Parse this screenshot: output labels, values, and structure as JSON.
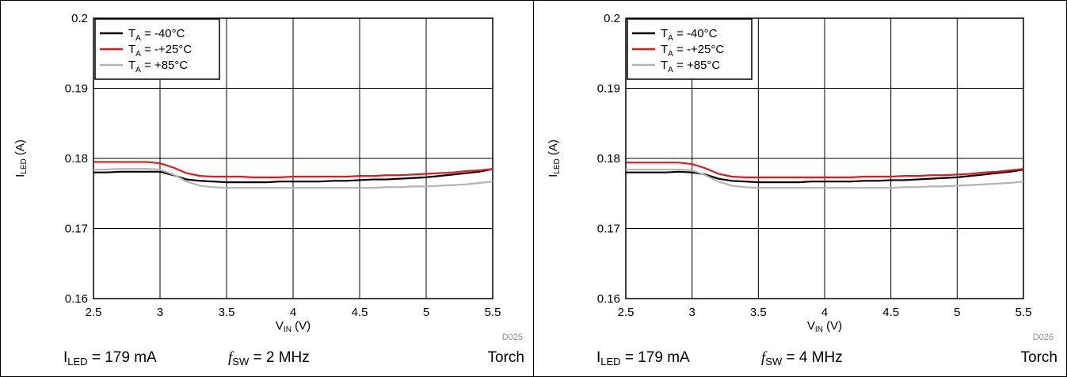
{
  "chart_data": [
    {
      "type": "line",
      "xlabel": {
        "main": "V",
        "sub": "IN",
        "unit": " (V)"
      },
      "ylabel": {
        "main": "I",
        "sub": "LED",
        "unit": " (A)"
      },
      "xlim": [
        2.5,
        5.5
      ],
      "ylim": [
        0.16,
        0.2
      ],
      "xticks": [
        "2.5",
        "3",
        "3.5",
        "4",
        "4.5",
        "5",
        "5.5"
      ],
      "yticks": [
        "0.16",
        "0.17",
        "0.18",
        "0.19",
        "0.2"
      ],
      "grid": true,
      "legend_position": "top-left",
      "code": "D025",
      "x": [
        2.5,
        2.6,
        2.7,
        2.8,
        2.9,
        3.0,
        3.1,
        3.2,
        3.3,
        3.4,
        3.5,
        3.6,
        3.7,
        3.8,
        3.9,
        4.0,
        4.1,
        4.2,
        4.3,
        4.4,
        4.5,
        4.6,
        4.7,
        4.8,
        4.9,
        5.0,
        5.1,
        5.2,
        5.3,
        5.4,
        5.5
      ],
      "series": [
        {
          "name": {
            "main": "T",
            "sub": "A",
            "rest": " = -40°C"
          },
          "color": "#000000",
          "values": [
            0.178,
            0.178,
            0.1781,
            0.1781,
            0.1781,
            0.1781,
            0.1776,
            0.177,
            0.1768,
            0.1767,
            0.1766,
            0.1766,
            0.1766,
            0.1766,
            0.1767,
            0.1767,
            0.1767,
            0.1767,
            0.1768,
            0.1768,
            0.1769,
            0.177,
            0.177,
            0.1771,
            0.1772,
            0.1773,
            0.1775,
            0.1777,
            0.1779,
            0.1781,
            0.1785
          ]
        },
        {
          "name": {
            "main": "T",
            "sub": "A",
            "rest": " = -+25°C"
          },
          "color": "#e31a1c",
          "values": [
            0.1795,
            0.1795,
            0.1795,
            0.1795,
            0.1795,
            0.1793,
            0.1787,
            0.1779,
            0.1775,
            0.1774,
            0.1774,
            0.1774,
            0.1773,
            0.1773,
            0.1773,
            0.1774,
            0.1774,
            0.1774,
            0.1774,
            0.1774,
            0.1775,
            0.1775,
            0.1776,
            0.1776,
            0.1777,
            0.1778,
            0.1779,
            0.178,
            0.1782,
            0.1783,
            0.1785
          ]
        },
        {
          "name": {
            "main": "T",
            "sub": "A",
            "rest": " = +85°C"
          },
          "color": "#b3b3b3",
          "values": [
            0.1784,
            0.1784,
            0.1785,
            0.1785,
            0.1785,
            0.1784,
            0.1777,
            0.1767,
            0.1761,
            0.1759,
            0.1758,
            0.1758,
            0.1758,
            0.1758,
            0.1758,
            0.1758,
            0.1758,
            0.1758,
            0.1758,
            0.1758,
            0.1758,
            0.1758,
            0.1759,
            0.1759,
            0.176,
            0.176,
            0.1761,
            0.1762,
            0.1763,
            0.1765,
            0.1767
          ]
        }
      ],
      "footer": {
        "left": {
          "main": "I",
          "sub": "LED",
          "rest": " = 179 mA"
        },
        "mid": {
          "main": "f",
          "sub": "SW",
          "rest": " = 2 MHz"
        },
        "right": "Torch"
      }
    },
    {
      "type": "line",
      "xlabel": {
        "main": "V",
        "sub": "IN",
        "unit": " (V)"
      },
      "ylabel": {
        "main": "I",
        "sub": "LED",
        "unit": " (A)"
      },
      "xlim": [
        2.5,
        5.5
      ],
      "ylim": [
        0.16,
        0.2
      ],
      "xticks": [
        "2.5",
        "3",
        "3.5",
        "4",
        "4.5",
        "5",
        "5.5"
      ],
      "yticks": [
        "0.16",
        "0.17",
        "0.18",
        "0.19",
        "0.2"
      ],
      "grid": true,
      "legend_position": "top-left",
      "code": "D026",
      "x": [
        2.5,
        2.6,
        2.7,
        2.8,
        2.9,
        3.0,
        3.1,
        3.2,
        3.3,
        3.4,
        3.5,
        3.6,
        3.7,
        3.8,
        3.9,
        4.0,
        4.1,
        4.2,
        4.3,
        4.4,
        4.5,
        4.6,
        4.7,
        4.8,
        4.9,
        5.0,
        5.1,
        5.2,
        5.3,
        5.4,
        5.5
      ],
      "series": [
        {
          "name": {
            "main": "T",
            "sub": "A",
            "rest": " = -40°C"
          },
          "color": "#000000",
          "values": [
            0.178,
            0.178,
            0.178,
            0.178,
            0.1781,
            0.178,
            0.1777,
            0.1771,
            0.1768,
            0.1767,
            0.1766,
            0.1766,
            0.1766,
            0.1766,
            0.1767,
            0.1767,
            0.1767,
            0.1767,
            0.1768,
            0.1768,
            0.1769,
            0.1769,
            0.177,
            0.1771,
            0.1772,
            0.1773,
            0.1775,
            0.1777,
            0.1779,
            0.1781,
            0.1784
          ]
        },
        {
          "name": {
            "main": "T",
            "sub": "A",
            "rest": " = -+25°C"
          },
          "color": "#e31a1c",
          "values": [
            0.1794,
            0.1794,
            0.1794,
            0.1794,
            0.1794,
            0.1792,
            0.1786,
            0.1778,
            0.1774,
            0.1773,
            0.1773,
            0.1773,
            0.1773,
            0.1773,
            0.1773,
            0.1773,
            0.1773,
            0.1773,
            0.1774,
            0.1774,
            0.1774,
            0.1775,
            0.1775,
            0.1776,
            0.1776,
            0.1777,
            0.1778,
            0.178,
            0.1781,
            0.1783,
            0.1785
          ]
        },
        {
          "name": {
            "main": "T",
            "sub": "A",
            "rest": " = +85°C"
          },
          "color": "#b3b3b3",
          "values": [
            0.1784,
            0.1784,
            0.1784,
            0.1784,
            0.1784,
            0.1783,
            0.1776,
            0.1767,
            0.1761,
            0.1759,
            0.1758,
            0.1758,
            0.1758,
            0.1758,
            0.1758,
            0.1758,
            0.1758,
            0.1758,
            0.1758,
            0.1758,
            0.1758,
            0.1759,
            0.1759,
            0.176,
            0.176,
            0.1761,
            0.1762,
            0.1763,
            0.1764,
            0.1765,
            0.1767
          ]
        }
      ],
      "footer": {
        "left": {
          "main": "I",
          "sub": "LED",
          "rest": " = 179 mA"
        },
        "mid": {
          "main": "f",
          "sub": "SW",
          "rest": " = 4 MHz"
        },
        "right": "Torch"
      }
    }
  ]
}
